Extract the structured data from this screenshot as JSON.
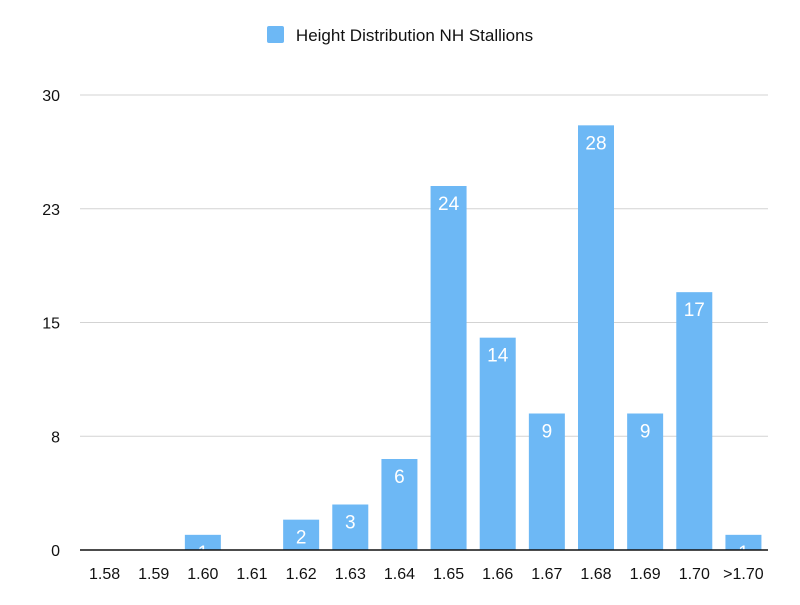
{
  "chart_data": {
    "type": "bar",
    "series_name": "Height Distribution NH Stallions",
    "categories": [
      "1.58",
      "1.59",
      "1.60",
      "1.61",
      "1.62",
      "1.63",
      "1.64",
      "1.65",
      "1.66",
      "1.67",
      "1.68",
      "1.69",
      "1.70",
      ">1.70"
    ],
    "values": [
      0,
      0,
      1,
      0,
      2,
      3,
      6,
      24,
      14,
      9,
      28,
      9,
      17,
      1
    ],
    "data_labels": [
      "",
      "",
      "1",
      "",
      "2",
      "3",
      "6",
      "24",
      "14",
      "9",
      "28",
      "9",
      "17",
      "1"
    ],
    "yticks": [
      0,
      7.5,
      15,
      22.5,
      30
    ],
    "ytick_labels": [
      "0",
      "8",
      "15",
      "23",
      "30"
    ],
    "ylim": [
      0,
      30
    ],
    "grid": true,
    "legend_position": "top-center",
    "bar_color": "#6db8f5"
  }
}
